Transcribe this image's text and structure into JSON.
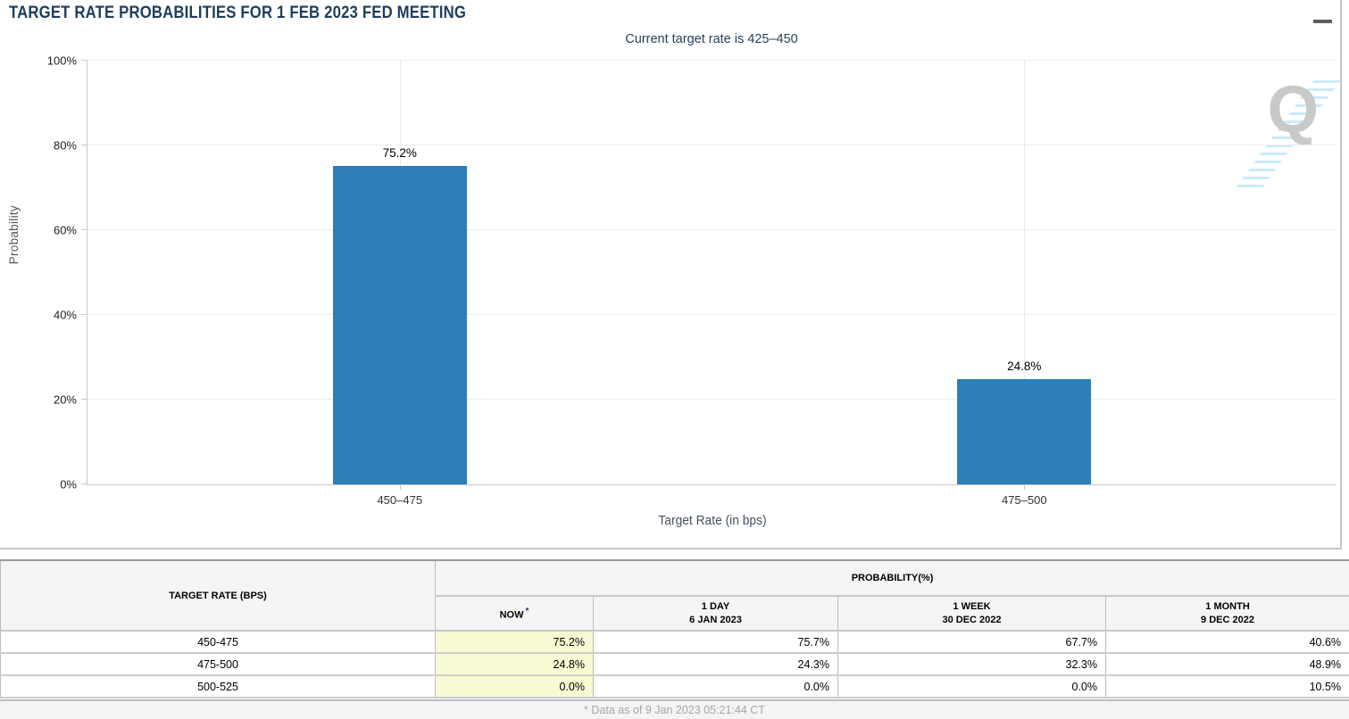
{
  "header": {
    "title": "TARGET RATE PROBABILITIES FOR 1 FEB 2023 FED MEETING"
  },
  "chart": {
    "subtitle": "Current target rate is 425–450",
    "y_axis_label": "Probability",
    "x_axis_label": "Target Rate (in bps)",
    "watermark_letter": "Q"
  },
  "chart_data": {
    "type": "bar",
    "title": "TARGET RATE PROBABILITIES FOR 1 FEB 2023 FED MEETING",
    "subtitle": "Current target rate is 425–450",
    "categories": [
      "450–475",
      "475–500"
    ],
    "values": [
      75.2,
      24.8
    ],
    "bar_labels": [
      "75.2%",
      "24.8%"
    ],
    "xlabel": "Target Rate (in bps)",
    "ylabel": "Probability",
    "ylim": [
      0,
      100
    ],
    "y_ticks": [
      0,
      20,
      40,
      60,
      80,
      100
    ],
    "y_tick_suffix": "%",
    "grid": true,
    "legend": false,
    "bar_color": "#2c7fb8"
  },
  "table": {
    "col_headers": {
      "target_rate": "TARGET RATE (BPS)",
      "probability_group": "PROBABILITY(%)",
      "now": "NOW",
      "now_asterisk": "*",
      "day_line1": "1 DAY",
      "day_line2": "6 JAN 2023",
      "week_line1": "1 WEEK",
      "week_line2": "30 DEC 2022",
      "month_line1": "1 MONTH",
      "month_line2": "9 DEC 2022"
    },
    "rows": [
      {
        "rate": "450-475",
        "now": "75.2%",
        "day": "75.7%",
        "week": "67.7%",
        "month": "40.6%"
      },
      {
        "rate": "475-500",
        "now": "24.8%",
        "day": "24.3%",
        "week": "32.3%",
        "month": "48.9%"
      },
      {
        "rate": "500-525",
        "now": "0.0%",
        "day": "0.0%",
        "week": "0.0%",
        "month": "10.5%"
      }
    ],
    "now_highlight_color": "#f9f9d4"
  },
  "footer": {
    "note": "* Data as of 9 Jan 2023 05:21:44 CT"
  }
}
